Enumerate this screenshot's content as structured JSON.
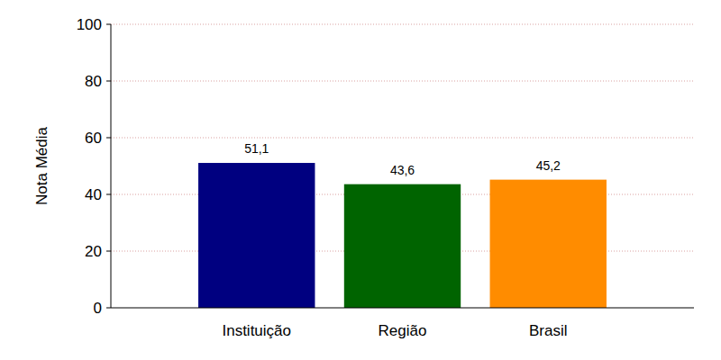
{
  "chart_data": {
    "type": "bar",
    "ylabel": "Nota Média",
    "categories": [
      "Instituição",
      "Região",
      "Brasil"
    ],
    "values": [
      51.1,
      43.6,
      45.2
    ],
    "value_labels": [
      "51,1",
      "43,6",
      "45,2"
    ],
    "colors": [
      "#000080",
      "#006400",
      "#ff8c00"
    ],
    "ylim": [
      0,
      100
    ],
    "yticks": [
      0,
      20,
      40,
      60,
      80,
      100
    ],
    "grid": true,
    "data_labels": true
  }
}
